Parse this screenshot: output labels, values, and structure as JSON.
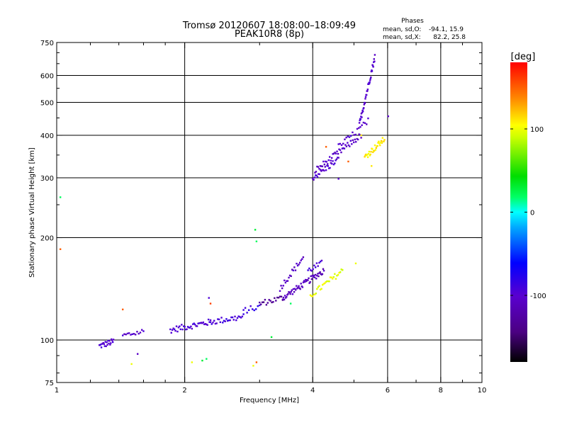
{
  "chart_data": {
    "type": "scatter",
    "title": "Tromsø 20120607 18:08:00–18:09:49",
    "subtitle": "PEAK10R8 (8p)",
    "xlabel": "Frequency [MHz]",
    "ylabel": "Stationary phase Virtual Height [km]",
    "x_scale": "log",
    "y_scale": "log",
    "xlim": [
      1,
      10
    ],
    "ylim": [
      75,
      750
    ],
    "x_ticks": [
      1,
      2,
      4,
      6,
      8,
      10
    ],
    "x_tick_labels": [
      "1",
      "2",
      "4",
      "6",
      "8",
      "10"
    ],
    "y_ticks": [
      75,
      100,
      200,
      300,
      400,
      500,
      600,
      750
    ],
    "y_tick_labels": [
      "75",
      "100",
      "200",
      "300",
      "400",
      "500",
      "600",
      "750"
    ],
    "grid": true,
    "stats": {
      "heading": "Phases",
      "o_label": "mean, sd,O:",
      "o_values": "-94.1, 15.9",
      "x_label": "mean, sd,X:",
      "x_values": "82.2, 25.8"
    },
    "colorbar": {
      "label": "[deg]",
      "range": [
        -180,
        180
      ],
      "ticks": [
        100,
        0,
        -100
      ],
      "tick_labels": [
        "100",
        "0",
        "-100"
      ]
    },
    "clusters": [
      {
        "kind": "line",
        "x0": 1.26,
        "x1": 1.36,
        "y0": 96,
        "y1": 99,
        "phase": -98,
        "n": 22
      },
      {
        "kind": "line",
        "x0": 1.43,
        "x1": 1.6,
        "y0": 103,
        "y1": 106,
        "phase": -100,
        "n": 14
      },
      {
        "kind": "line",
        "x0": 1.85,
        "x1": 2.3,
        "y0": 107,
        "y1": 113,
        "phase": -98,
        "n": 40
      },
      {
        "kind": "line",
        "x0": 2.3,
        "x1": 2.75,
        "y0": 113,
        "y1": 117,
        "phase": -92,
        "n": 28
      },
      {
        "kind": "line",
        "x0": 2.75,
        "x1": 3.0,
        "y0": 122,
        "y1": 125,
        "phase": -85,
        "n": 10
      },
      {
        "kind": "line",
        "x0": 3.0,
        "x1": 3.4,
        "y0": 128,
        "y1": 133,
        "phase": -135,
        "n": 18
      },
      {
        "kind": "line",
        "x0": 3.4,
        "x1": 4.25,
        "y0": 133,
        "y1": 160,
        "phase": -110,
        "n": 55
      },
      {
        "kind": "line",
        "x0": 3.35,
        "x1": 3.8,
        "y0": 142,
        "y1": 175,
        "phase": -105,
        "n": 22
      },
      {
        "kind": "line",
        "x0": 3.9,
        "x1": 4.2,
        "y0": 160,
        "y1": 168,
        "phase": -95,
        "n": 12
      },
      {
        "kind": "line",
        "x0": 3.95,
        "x1": 4.7,
        "y0": 135,
        "y1": 160,
        "phase": 100,
        "n": 30
      },
      {
        "kind": "line",
        "x0": 4.0,
        "x1": 4.6,
        "y0": 300,
        "y1": 340,
        "phase": -100,
        "n": 28
      },
      {
        "kind": "line",
        "x0": 4.05,
        "x1": 5.2,
        "y0": 315,
        "y1": 400,
        "phase": -105,
        "n": 45
      },
      {
        "kind": "line",
        "x0": 4.6,
        "x1": 5.4,
        "y0": 370,
        "y1": 440,
        "phase": -100,
        "n": 20
      },
      {
        "kind": "line",
        "x0": 5.15,
        "x1": 5.6,
        "y0": 430,
        "y1": 680,
        "phase": -100,
        "n": 40
      },
      {
        "kind": "line",
        "x0": 5.3,
        "x1": 5.9,
        "y0": 345,
        "y1": 390,
        "phase": 110,
        "n": 32
      }
    ],
    "points": [
      {
        "x": 1.02,
        "y": 185,
        "phase": 150
      },
      {
        "x": 1.02,
        "y": 263,
        "phase": 20
      },
      {
        "x": 1.43,
        "y": 123,
        "phase": 150
      },
      {
        "x": 1.5,
        "y": 85,
        "phase": 100
      },
      {
        "x": 1.55,
        "y": 91,
        "phase": -105
      },
      {
        "x": 2.08,
        "y": 86,
        "phase": 100
      },
      {
        "x": 2.2,
        "y": 87,
        "phase": 30
      },
      {
        "x": 2.25,
        "y": 88,
        "phase": 20
      },
      {
        "x": 2.28,
        "y": 133,
        "phase": -95
      },
      {
        "x": 2.3,
        "y": 128,
        "phase": 160
      },
      {
        "x": 2.9,
        "y": 84,
        "phase": 100
      },
      {
        "x": 2.95,
        "y": 86,
        "phase": 150
      },
      {
        "x": 2.93,
        "y": 211,
        "phase": 30
      },
      {
        "x": 2.95,
        "y": 195,
        "phase": 20
      },
      {
        "x": 3.2,
        "y": 102,
        "phase": 30
      },
      {
        "x": 3.55,
        "y": 128,
        "phase": 20
      },
      {
        "x": 4.6,
        "y": 298,
        "phase": -100
      },
      {
        "x": 4.3,
        "y": 370,
        "phase": 150
      },
      {
        "x": 4.85,
        "y": 335,
        "phase": 150
      },
      {
        "x": 5.2,
        "y": 400,
        "phase": 110
      },
      {
        "x": 5.5,
        "y": 325,
        "phase": 110
      },
      {
        "x": 6.02,
        "y": 455,
        "phase": -105
      },
      {
        "x": 5.05,
        "y": 168,
        "phase": 100
      }
    ]
  }
}
